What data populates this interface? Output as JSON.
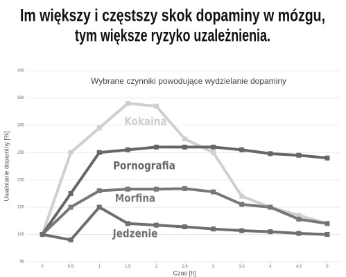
{
  "header": {
    "line1": "Im większy i częstszy skok dopaminy w mózgu,",
    "line2": "tym większe ryzyko uzależnienia."
  },
  "chart_data": {
    "type": "line",
    "title": "Wybrane czynniki powodujące wydzielanie dopaminy",
    "y_label": "Uwalnianie dopaminy [%]",
    "x_label": "Czas [h]",
    "x": [
      0,
      0.5,
      1,
      1.5,
      2,
      2.5,
      3,
      3.5,
      4,
      4.5,
      5
    ],
    "xlim": [
      0,
      5
    ],
    "xticks": [
      0,
      {
        "value": 0.5,
        "label": "0,5"
      },
      1,
      {
        "value": 1.5,
        "label": "1,5"
      },
      2,
      {
        "value": 2.5,
        "label": "2,5"
      },
      3,
      {
        "value": 3.5,
        "label": "3,5"
      },
      4,
      {
        "value": 4.5,
        "label": "4,5"
      },
      5
    ],
    "ylim": [
      50,
      400
    ],
    "yticks": [
      50,
      100,
      150,
      200,
      250,
      300,
      350,
      400
    ],
    "grid": true,
    "series": [
      {
        "name": "Kokaina",
        "color": "#cfcfcf",
        "values": [
          100,
          250,
          295,
          340,
          335,
          275,
          250,
          170,
          150,
          135,
          120
        ]
      },
      {
        "name": "Pornografia",
        "color": "#666666",
        "values": [
          100,
          175,
          250,
          255,
          260,
          260,
          260,
          255,
          248,
          245,
          240
        ]
      },
      {
        "name": "Morfina",
        "color": "#777777",
        "values": [
          100,
          150,
          180,
          183,
          183,
          184,
          178,
          155,
          150,
          128,
          120
        ]
      },
      {
        "name": "Jedzenie",
        "color": "#6e6e6e",
        "values": [
          100,
          90,
          150,
          120,
          117,
          114,
          110,
          107,
          105,
          102,
          100
        ]
      }
    ]
  }
}
